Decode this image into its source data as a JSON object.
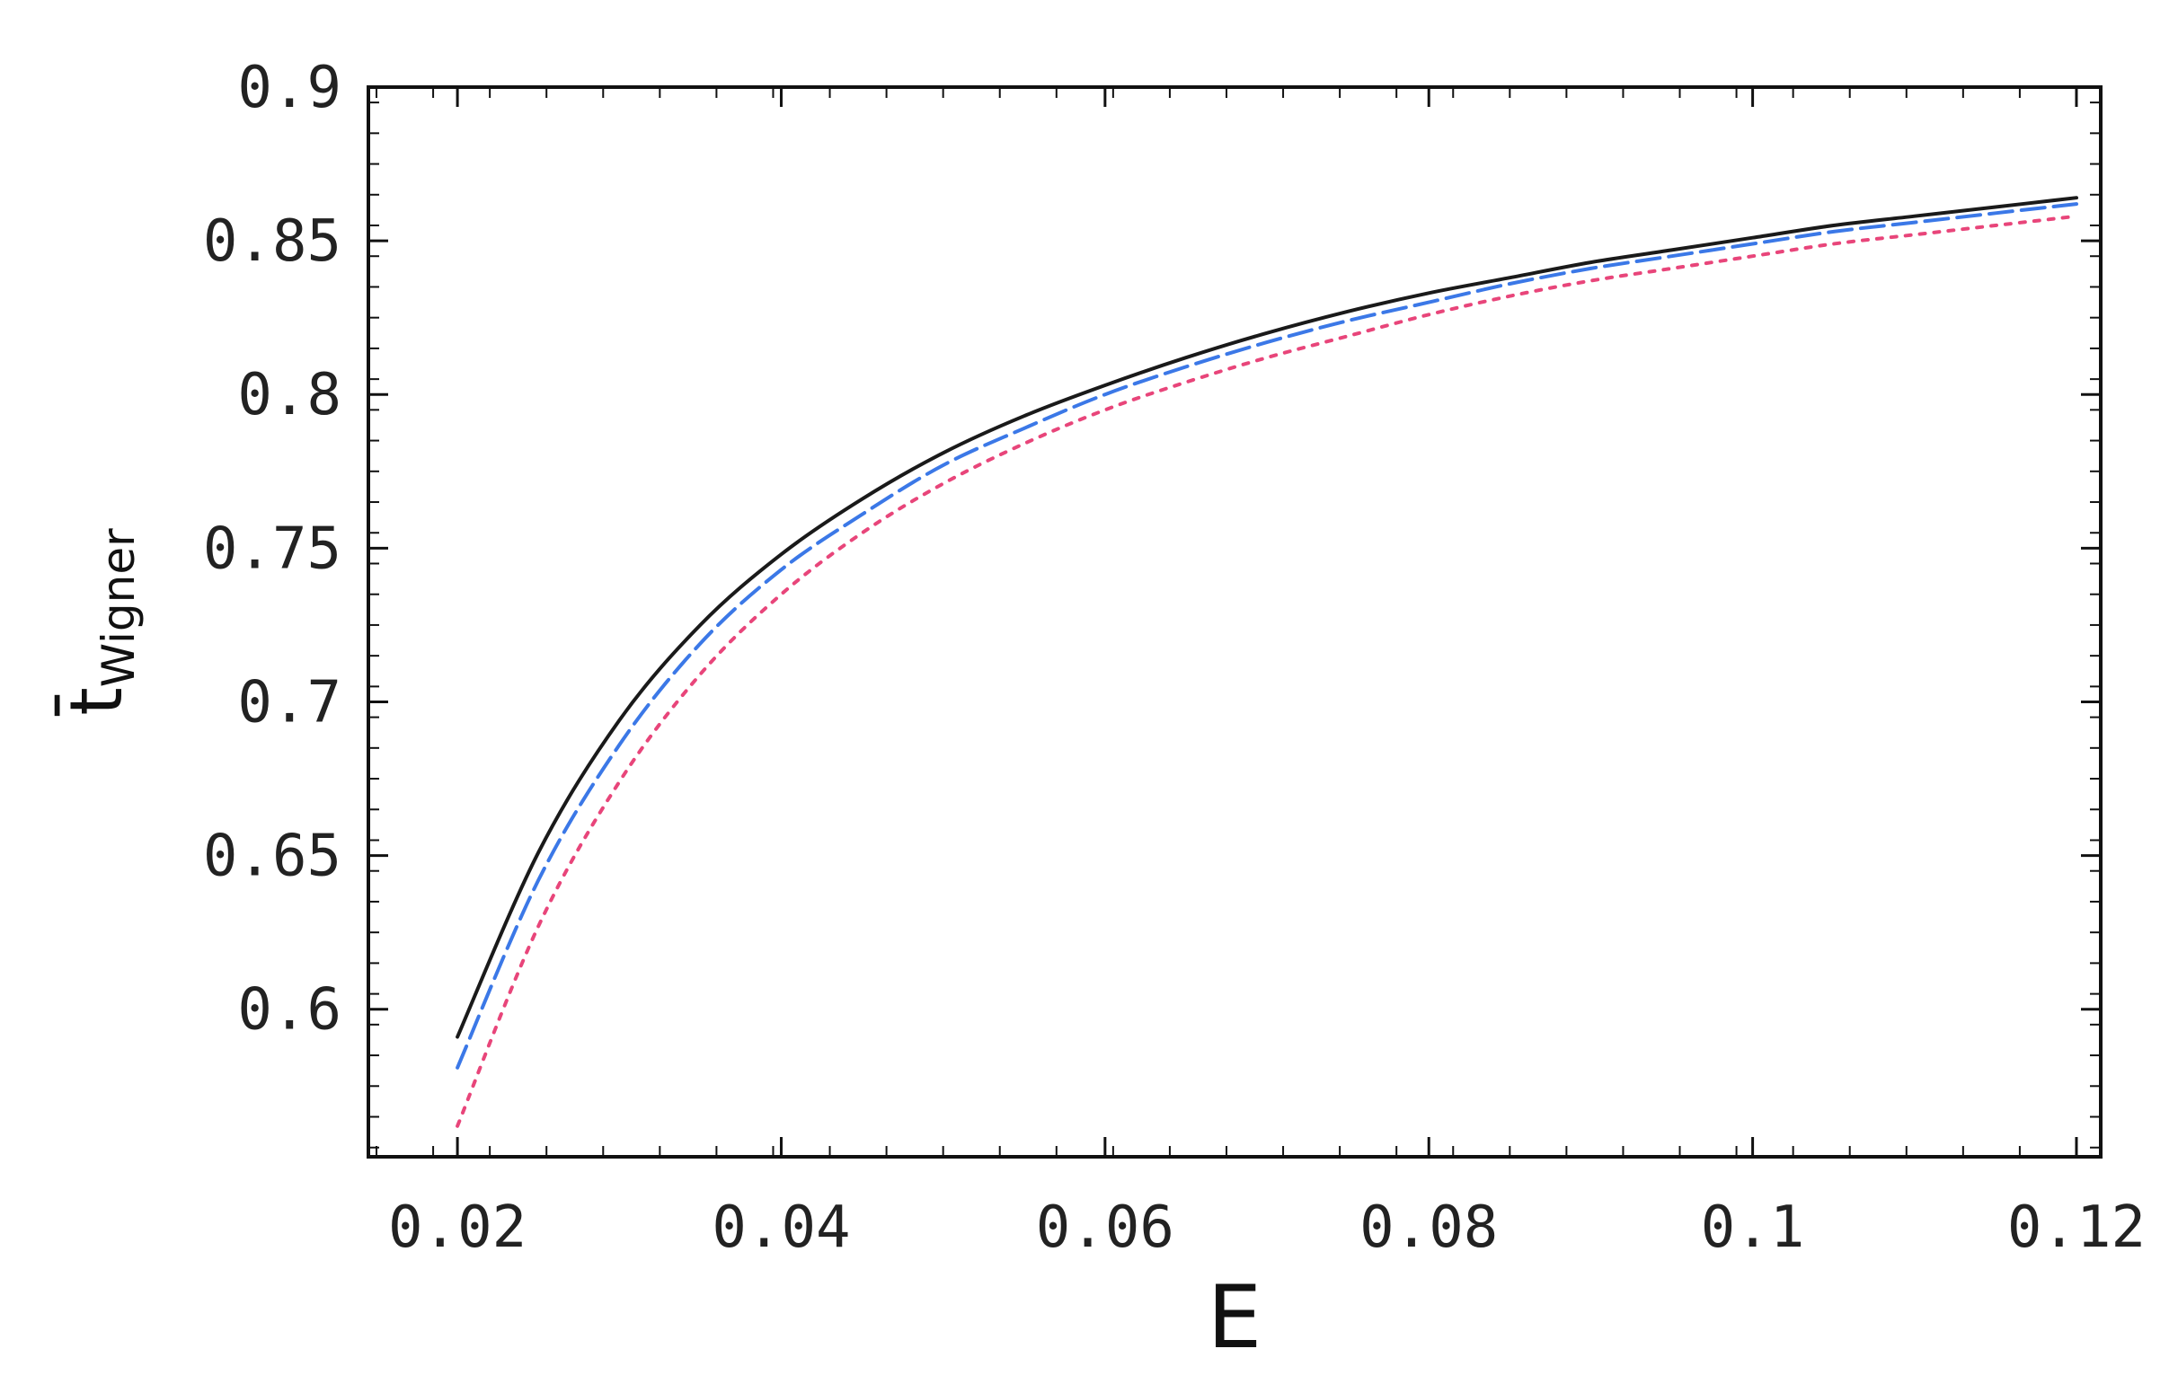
{
  "chart_data": {
    "type": "line",
    "xlabel": "E",
    "ylabel_main": "t̄",
    "ylabel_sub": "Wigner",
    "xlim": [
      0.0145,
      0.1215
    ],
    "ylim": [
      0.552,
      0.9
    ],
    "xticks": [
      0.02,
      0.04,
      0.06,
      0.08,
      0.1,
      0.12
    ],
    "xtick_labels": [
      "0.02",
      "0.04",
      "0.06",
      "0.08",
      "0.1",
      "0.12"
    ],
    "yticks": [
      0.6,
      0.65,
      0.7,
      0.75,
      0.8,
      0.85,
      0.9
    ],
    "ytick_labels": [
      "0.6",
      "0.65",
      "0.7",
      "0.75",
      "0.8",
      "0.85",
      "0.9"
    ],
    "grid": false,
    "series": [
      {
        "style": "solid",
        "color": "#1a1a1a",
        "x": [
          0.02,
          0.025,
          0.03,
          0.035,
          0.04,
          0.045,
          0.05,
          0.055,
          0.06,
          0.065,
          0.07,
          0.075,
          0.08,
          0.085,
          0.09,
          0.095,
          0.1,
          0.105,
          0.11,
          0.115,
          0.12
        ],
        "y": [
          0.591,
          0.651,
          0.694,
          0.725,
          0.748,
          0.766,
          0.781,
          0.793,
          0.803,
          0.812,
          0.82,
          0.827,
          0.833,
          0.838,
          0.843,
          0.847,
          0.851,
          0.855,
          0.858,
          0.861,
          0.864
        ]
      },
      {
        "style": "dashed",
        "color": "#3b78e7",
        "x": [
          0.02,
          0.025,
          0.03,
          0.035,
          0.04,
          0.045,
          0.05,
          0.055,
          0.06,
          0.065,
          0.07,
          0.075,
          0.08,
          0.085,
          0.09,
          0.095,
          0.1,
          0.105,
          0.11,
          0.115,
          0.12
        ],
        "y": [
          0.581,
          0.642,
          0.686,
          0.719,
          0.743,
          0.761,
          0.777,
          0.789,
          0.8,
          0.809,
          0.817,
          0.824,
          0.83,
          0.836,
          0.841,
          0.845,
          0.849,
          0.853,
          0.856,
          0.859,
          0.862
        ]
      },
      {
        "style": "dotted",
        "color": "#e8457a",
        "x": [
          0.02,
          0.025,
          0.03,
          0.035,
          0.04,
          0.045,
          0.05,
          0.055,
          0.06,
          0.065,
          0.07,
          0.075,
          0.08,
          0.085,
          0.09,
          0.095,
          0.1,
          0.105,
          0.11,
          0.115,
          0.12
        ],
        "y": [
          0.562,
          0.627,
          0.674,
          0.709,
          0.735,
          0.755,
          0.771,
          0.784,
          0.795,
          0.804,
          0.812,
          0.819,
          0.826,
          0.832,
          0.837,
          0.841,
          0.845,
          0.849,
          0.852,
          0.855,
          0.858
        ]
      }
    ]
  }
}
